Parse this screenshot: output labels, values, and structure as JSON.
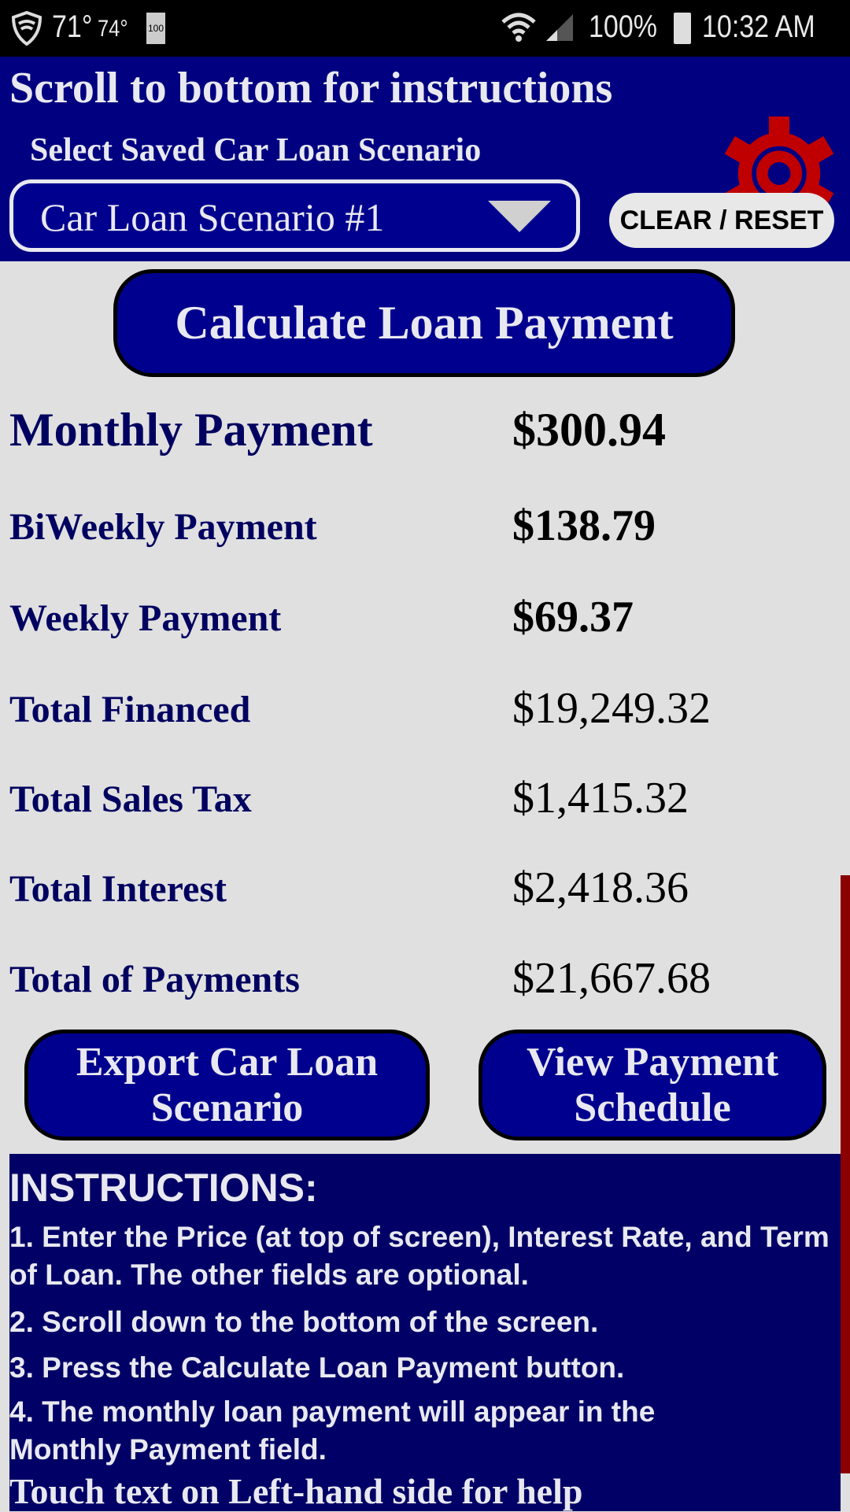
{
  "status_bar": {
    "temp1": "71°",
    "temp2": "74°",
    "battery_small": "100",
    "battery": "100%",
    "time": "10:32 AM"
  },
  "header": {
    "title": "Scroll to bottom for instructions",
    "select_label": "Select Saved Car Loan Scenario",
    "selected_scenario": "Car Loan Scenario #1",
    "clear_label": "CLEAR / RESET",
    "gear_color": "#c00000"
  },
  "calculate_label": "Calculate Loan Payment",
  "results": [
    {
      "label": "Monthly Payment",
      "value": "$300.94"
    },
    {
      "label": "BiWeekly Payment",
      "value": "$138.79"
    },
    {
      "label": "Weekly Payment",
      "value": "$69.37"
    },
    {
      "label": "Total Financed",
      "value": "$19,249.32"
    },
    {
      "label": "Total Sales Tax",
      "value": "$1,415.32"
    },
    {
      "label": "Total Interest",
      "value": "$2,418.36"
    },
    {
      "label": "Total of Payments",
      "value": "$21,667.68"
    }
  ],
  "export_button": {
    "line1": "Export Car Loan",
    "line2": "Scenario"
  },
  "schedule_button": {
    "line1": "View Payment",
    "line2": "Schedule"
  },
  "instructions": {
    "heading": "INSTRUCTIONS:",
    "steps": [
      "1. Enter the Price (at top of screen), Interest Rate, and Term of Loan. The other fields are optional.",
      "2. Scroll down to the bottom of the screen.",
      "3. Press the Calculate Loan Payment button.",
      "4. The monthly loan payment will appear in the Monthly Payment field."
    ],
    "help": "Touch text on Left-hand side for help"
  },
  "colors": {
    "header_bg": "#000080",
    "button_bg": "#00008e",
    "instructions_bg": "#000066",
    "scrollbar": "#8b0000"
  }
}
